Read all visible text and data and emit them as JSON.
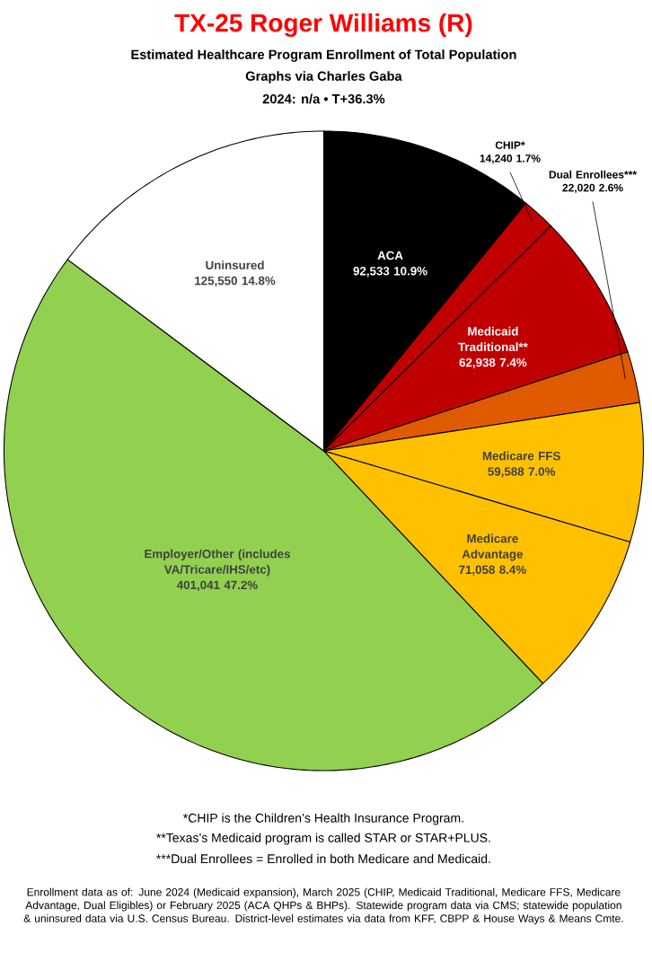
{
  "chart_data": {
    "type": "pie",
    "title": "TX-25 Roger Williams (R)",
    "subtitle": "Estimated Healthcare Program Enrollment of Total Population",
    "categories": [
      "ACA",
      "CHIP*",
      "Medicaid Traditional**",
      "Dual Enrollees***",
      "Medicare FFS",
      "Medicare Advantage",
      "Employer/Other (includes VA/Tricare/IHS/etc)",
      "Uninsured"
    ],
    "values": [
      92533,
      14240,
      62938,
      22020,
      59588,
      71058,
      401041,
      125550
    ],
    "value_labels": [
      "92,533 10.9%",
      "14,240 1.7%",
      "62,938 7.4%",
      "22,020 2.6%",
      "59,588 7.0%",
      "71,058 8.4%",
      "401,041 47.2%",
      "125,550 14.8%"
    ],
    "colors": [
      "#000000",
      "#c00000",
      "#c00000",
      "#e05a00",
      "#ffc000",
      "#ffc000",
      "#92d050",
      "#ffffff"
    ],
    "annotations": [
      "Graphs via Charles Gaba",
      "2024: n/a • T+36.3%",
      "*CHIP is the Children’s Health Insurance Program.",
      "**Texas’s Medicaid program is called STAR or STAR+PLUS.",
      "***Dual Enrollees = Enrolled in both Medicare and Medicaid.",
      "Enrollment data as of: June 2024 (Medicaid expansion), March 2025 (CHIP, Medicaid Traditional, Medicare FFS, Medicare Advantage, Dual Eligibles) or February 2025 (ACA QHPs & BHPs). Statewide program data via CMS; statewide population & uninsured data via U.S. Census Bureau. District-level estimates via data from KFF, CBPP & House Ways & Means Cmte."
    ]
  }
}
